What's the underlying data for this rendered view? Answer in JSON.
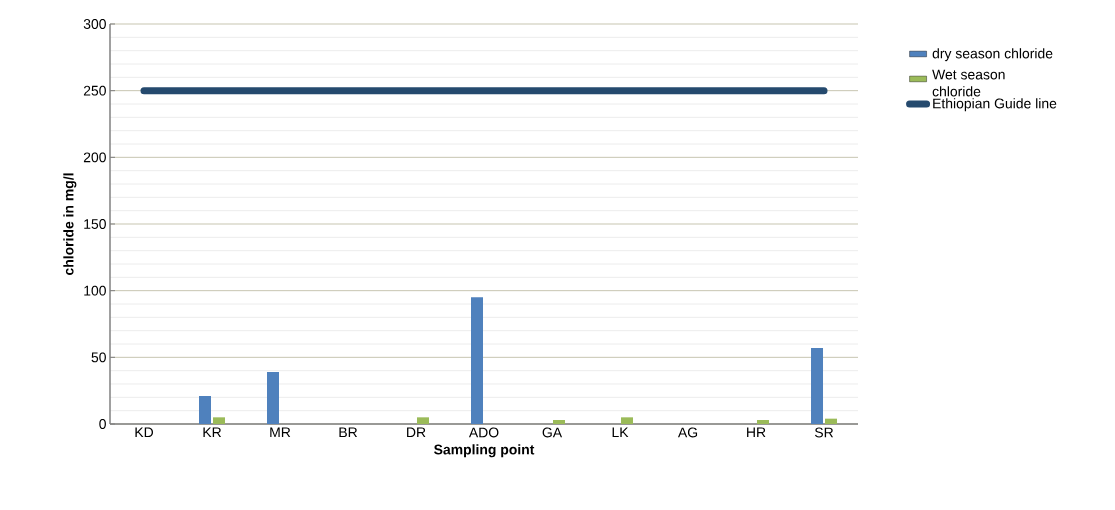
{
  "chart_data": {
    "type": "bar",
    "xlabel": "Sampling point",
    "ylabel": "chloride in mg/l",
    "categories": [
      "KD",
      "KR",
      "MR",
      "BR",
      "DR",
      "ADO",
      "GA",
      "LK",
      "AG",
      "HR",
      "SR"
    ],
    "series": [
      {
        "name": "dry season chloride",
        "color": "#4f81bd",
        "values": [
          0,
          21,
          39,
          0,
          0,
          95,
          0,
          0,
          0,
          0,
          57
        ]
      },
      {
        "name": "Wet season chloride",
        "color": "#9bbb59",
        "values": [
          0,
          5,
          0,
          0,
          5,
          0,
          3,
          5,
          0,
          3,
          4
        ]
      },
      {
        "name": "Ethiopian Guide line",
        "type": "line",
        "color": "#254a6e",
        "values": [
          250,
          250,
          250,
          250,
          250,
          250,
          250,
          250,
          250,
          250,
          250
        ]
      }
    ],
    "ylim": [
      0,
      300
    ],
    "yticks": [
      0,
      50,
      100,
      150,
      200,
      250,
      300
    ],
    "grid": "y",
    "legend": "right"
  }
}
